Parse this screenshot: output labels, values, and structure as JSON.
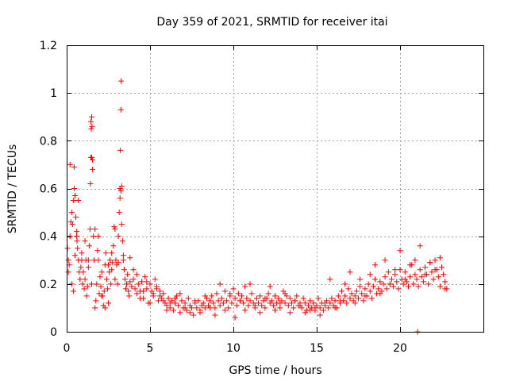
{
  "chart_data": {
    "type": "scatter",
    "title": "Day 359 of 2021, SRMTID for receiver itai",
    "xlabel": "GPS time / hours",
    "ylabel": "SRMTID / TECUs",
    "xlim": [
      0,
      25
    ],
    "ylim": [
      0,
      1.2
    ],
    "xticks": [
      0,
      5,
      10,
      15,
      20
    ],
    "xtick_labels": [
      "0",
      "5",
      "10",
      "15",
      "20"
    ],
    "yticks": [
      0,
      0.2,
      0.4,
      0.6,
      0.8,
      1.0,
      1.2
    ],
    "ytick_labels": [
      "0",
      "0.2",
      "0.4",
      "0.6",
      "0.8",
      "1",
      "1.2"
    ],
    "grid": true,
    "marker": "+",
    "series": [
      {
        "name": "SRMTID",
        "color": "#ff0000",
        "x": [
          0.05,
          0.1,
          0.15,
          0.2,
          0.25,
          0.3,
          0.35,
          0.4,
          0.45,
          0.5,
          0.55,
          0.6,
          0.62,
          0.65,
          0.7,
          0.75,
          0.8,
          0.85,
          0.9,
          0.95,
          1.0,
          1.05,
          1.1,
          1.15,
          1.2,
          1.25,
          1.3,
          1.35,
          1.4,
          1.42,
          1.45,
          1.47,
          1.5,
          1.52,
          1.55,
          1.6,
          1.65,
          1.7,
          1.75,
          1.8,
          1.85,
          1.9,
          1.95,
          2.0,
          2.05,
          2.1,
          2.15,
          2.2,
          2.25,
          2.3,
          2.35,
          2.4,
          2.45,
          2.5,
          2.55,
          2.6,
          2.65,
          2.7,
          2.75,
          2.8,
          2.85,
          2.9,
          2.95,
          3.0,
          3.05,
          3.1,
          3.15,
          3.2,
          3.22,
          3.25,
          3.27,
          3.3,
          3.35,
          3.4,
          3.45,
          3.5,
          3.55,
          3.6,
          3.65,
          3.7,
          3.75,
          3.8,
          3.9,
          4.0,
          4.1,
          4.2,
          4.3,
          4.4,
          4.5,
          4.6,
          4.7,
          4.8,
          4.9,
          5.0,
          5.1,
          5.2,
          5.3,
          5.4,
          5.5,
          5.6,
          5.7,
          5.8,
          5.9,
          6.0,
          6.1,
          6.2,
          6.3,
          6.4,
          6.5,
          6.6,
          6.7,
          6.8,
          6.9,
          7.0,
          7.1,
          7.2,
          7.3,
          7.4,
          7.5,
          7.6,
          7.7,
          7.8,
          7.9,
          8.0,
          8.1,
          8.2,
          8.3,
          8.4,
          8.5,
          8.6,
          8.7,
          8.8,
          8.9,
          9.0,
          9.1,
          9.2,
          9.3,
          9.4,
          9.5,
          9.6,
          9.7,
          9.8,
          9.9,
          10.0,
          10.1,
          10.2,
          10.3,
          10.4,
          10.5,
          10.6,
          10.7,
          10.8,
          10.9,
          11.0,
          11.1,
          11.2,
          11.3,
          11.4,
          11.5,
          11.6,
          11.7,
          11.8,
          11.9,
          12.0,
          12.1,
          12.2,
          12.3,
          12.4,
          12.5,
          12.6,
          12.7,
          12.8,
          12.9,
          13.0,
          13.1,
          13.2,
          13.3,
          13.4,
          13.5,
          13.6,
          13.7,
          13.8,
          13.9,
          14.0,
          14.1,
          14.2,
          14.3,
          14.4,
          14.5,
          14.6,
          14.7,
          14.8,
          14.9,
          15.0,
          15.1,
          15.2,
          15.3,
          15.4,
          15.5,
          15.6,
          15.7,
          15.8,
          15.9,
          16.0,
          16.1,
          16.2,
          16.3,
          16.4,
          16.5,
          16.6,
          16.7,
          16.8,
          16.9,
          17.0,
          17.1,
          17.2,
          17.3,
          17.4,
          17.5,
          17.6,
          17.7,
          17.8,
          17.9,
          18.0,
          18.1,
          18.2,
          18.3,
          18.4,
          18.5,
          18.6,
          18.7,
          18.8,
          18.9,
          19.0,
          19.1,
          19.2,
          19.3,
          19.4,
          19.5,
          19.6,
          19.7,
          19.8,
          19.9,
          20.0,
          20.1,
          20.2,
          20.3,
          20.4,
          20.5,
          20.6,
          20.7,
          20.8,
          20.9,
          21.0,
          21.1,
          21.2,
          21.3,
          21.4,
          21.5,
          21.6,
          21.7,
          21.8,
          21.9,
          22.0,
          22.1,
          22.2,
          22.3,
          22.4,
          22.5,
          22.6,
          22.7,
          22.8,
          0.1,
          0.3,
          0.4,
          0.5,
          0.6,
          0.7,
          0.9,
          1.1,
          1.3,
          1.5,
          1.7,
          1.9,
          2.1,
          2.3,
          2.5,
          2.7,
          2.9,
          3.1,
          3.4,
          3.6,
          3.8,
          4.0,
          4.2,
          4.4,
          4.6,
          4.8,
          5.0,
          5.2,
          5.4,
          5.6,
          5.8,
          6.0,
          6.2,
          6.5,
          6.8,
          7.1,
          7.4,
          7.7,
          8.0,
          8.3,
          8.6,
          8.9,
          9.2,
          9.5,
          9.8,
          10.1,
          10.4,
          10.7,
          11.0,
          11.3,
          11.6,
          11.9,
          12.2,
          12.5,
          12.8,
          13.1,
          13.4,
          13.7,
          14.0,
          14.3,
          14.6,
          14.9,
          15.2,
          15.5,
          15.8,
          16.1,
          16.4,
          16.7,
          17.0,
          17.3,
          17.6,
          17.9,
          18.2,
          18.5,
          18.8,
          19.1,
          19.4,
          19.7,
          20.0,
          20.3,
          20.6,
          20.9,
          21.2,
          21.5,
          21.8,
          22.1,
          22.4,
          22.7,
          0.2,
          0.45,
          1.45,
          1.5,
          1.55,
          3.2,
          3.25,
          3.3,
          21.05
        ],
        "y": [
          0.35,
          0.3,
          0.28,
          0.4,
          0.46,
          0.5,
          0.45,
          0.55,
          0.6,
          0.57,
          0.48,
          0.4,
          0.38,
          0.35,
          0.3,
          0.25,
          0.22,
          0.27,
          0.3,
          0.2,
          0.25,
          0.18,
          0.22,
          0.3,
          0.15,
          0.19,
          0.27,
          0.36,
          0.43,
          0.62,
          0.73,
          0.85,
          0.9,
          0.86,
          0.68,
          0.4,
          0.3,
          0.1,
          0.13,
          0.2,
          0.34,
          0.4,
          0.16,
          0.23,
          0.19,
          0.25,
          0.15,
          0.11,
          0.17,
          0.28,
          0.33,
          0.22,
          0.18,
          0.12,
          0.25,
          0.3,
          0.2,
          0.33,
          0.29,
          0.36,
          0.44,
          0.43,
          0.3,
          0.28,
          0.2,
          0.4,
          0.5,
          0.6,
          0.76,
          0.93,
          1.05,
          0.45,
          0.38,
          0.3,
          0.26,
          0.22,
          0.18,
          0.2,
          0.24,
          0.17,
          0.15,
          0.21,
          0.19,
          0.22,
          0.18,
          0.16,
          0.2,
          0.14,
          0.21,
          0.17,
          0.23,
          0.18,
          0.12,
          0.2,
          0.17,
          0.15,
          0.22,
          0.19,
          0.13,
          0.17,
          0.14,
          0.16,
          0.12,
          0.11,
          0.14,
          0.1,
          0.13,
          0.09,
          0.12,
          0.15,
          0.11,
          0.08,
          0.13,
          0.1,
          0.12,
          0.09,
          0.14,
          0.11,
          0.1,
          0.07,
          0.12,
          0.1,
          0.13,
          0.09,
          0.11,
          0.12,
          0.1,
          0.14,
          0.11,
          0.13,
          0.15,
          0.12,
          0.1,
          0.16,
          0.13,
          0.11,
          0.14,
          0.12,
          0.17,
          0.13,
          0.1,
          0.15,
          0.12,
          0.18,
          0.14,
          0.11,
          0.16,
          0.13,
          0.15,
          0.12,
          0.19,
          0.14,
          0.11,
          0.13,
          0.16,
          0.12,
          0.1,
          0.14,
          0.12,
          0.15,
          0.11,
          0.13,
          0.1,
          0.14,
          0.16,
          0.12,
          0.13,
          0.11,
          0.15,
          0.12,
          0.14,
          0.1,
          0.13,
          0.17,
          0.12,
          0.15,
          0.11,
          0.14,
          0.12,
          0.1,
          0.13,
          0.15,
          0.11,
          0.12,
          0.1,
          0.14,
          0.12,
          0.09,
          0.11,
          0.13,
          0.1,
          0.12,
          0.09,
          0.11,
          0.14,
          0.1,
          0.12,
          0.09,
          0.11,
          0.13,
          0.1,
          0.12,
          0.14,
          0.11,
          0.13,
          0.1,
          0.15,
          0.12,
          0.17,
          0.13,
          0.15,
          0.12,
          0.18,
          0.14,
          0.16,
          0.13,
          0.15,
          0.17,
          0.14,
          0.19,
          0.16,
          0.13,
          0.18,
          0.15,
          0.2,
          0.17,
          0.14,
          0.19,
          0.22,
          0.16,
          0.18,
          0.21,
          0.17,
          0.2,
          0.23,
          0.18,
          0.25,
          0.2,
          0.22,
          0.19,
          0.24,
          0.21,
          0.18,
          0.26,
          0.22,
          0.2,
          0.25,
          0.21,
          0.19,
          0.23,
          0.28,
          0.2,
          0.24,
          0.22,
          0.19,
          0.26,
          0.23,
          0.21,
          0.27,
          0.24,
          0.2,
          0.29,
          0.25,
          0.22,
          0.3,
          0.26,
          0.23,
          0.19,
          0.27,
          0.24,
          0.21,
          0.18,
          0.25,
          0.2,
          0.17,
          0.32,
          0.42,
          0.55,
          0.33,
          0.38,
          0.3,
          0.2,
          0.43,
          0.3,
          0.15,
          0.1,
          0.28,
          0.26,
          0.22,
          0.29,
          0.32,
          0.2,
          0.31,
          0.26,
          0.24,
          0.17,
          0.14,
          0.21,
          0.12,
          0.16,
          0.18,
          0.15,
          0.13,
          0.09,
          0.12,
          0.14,
          0.16,
          0.1,
          0.08,
          0.13,
          0.08,
          0.15,
          0.1,
          0.07,
          0.2,
          0.09,
          0.16,
          0.06,
          0.13,
          0.09,
          0.2,
          0.11,
          0.08,
          0.14,
          0.19,
          0.09,
          0.12,
          0.16,
          0.08,
          0.13,
          0.11,
          0.08,
          0.09,
          0.1,
          0.07,
          0.12,
          0.22,
          0.1,
          0.13,
          0.2,
          0.25,
          0.12,
          0.22,
          0.15,
          0.24,
          0.28,
          0.16,
          0.3,
          0.2,
          0.26,
          0.34,
          0.22,
          0.28,
          0.3,
          0.36,
          0.24,
          0.29,
          0.26,
          0.31,
          0.18,
          0.7,
          0.69,
          0.88,
          0.73,
          0.72,
          0.56,
          0.59,
          0.61,
          0.0
        ]
      }
    ]
  }
}
